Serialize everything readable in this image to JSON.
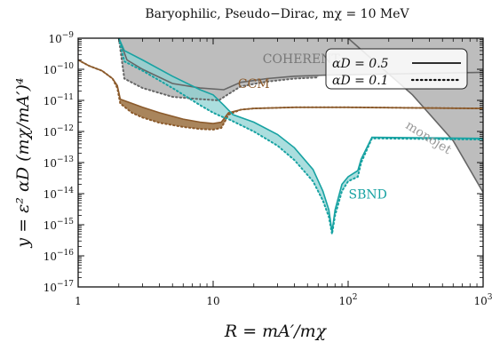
{
  "chart_data": {
    "type": "line",
    "title": "Baryophilic, Pseudo−Dirac, mχ = 10 MeV",
    "xlabel": "R = mA′/mχ",
    "ylabel": "y = ε² αD (mχ/mA′)⁴",
    "xscale": "log",
    "yscale": "log",
    "xlim": [
      1,
      1000
    ],
    "ylim": [
      1e-17,
      1e-09
    ],
    "x_ticks": [
      {
        "base": "1",
        "exp": "",
        "value": 1
      },
      {
        "base": "10",
        "exp": "",
        "value": 10
      },
      {
        "base": "10",
        "exp": "2",
        "value": 100
      },
      {
        "base": "10",
        "exp": "3",
        "value": 1000
      }
    ],
    "y_ticks": [
      {
        "base": "10",
        "exp": "−17",
        "value": 1e-17
      },
      {
        "base": "10",
        "exp": "−16",
        "value": 1e-16
      },
      {
        "base": "10",
        "exp": "−15",
        "value": 1e-15
      },
      {
        "base": "10",
        "exp": "−14",
        "value": 1e-14
      },
      {
        "base": "10",
        "exp": "−13",
        "value": 1e-13
      },
      {
        "base": "10",
        "exp": "−12",
        "value": 1e-12
      },
      {
        "base": "10",
        "exp": "−11",
        "value": 1e-11
      },
      {
        "base": "10",
        "exp": "−10",
        "value": 1e-10
      },
      {
        "base": "10",
        "exp": "−9",
        "value": 1e-09
      }
    ],
    "legend": {
      "placement": "top-right",
      "entries": [
        {
          "label": "αD = 0.5",
          "style": "solid"
        },
        {
          "label": "αD = 0.1",
          "style": "dotted"
        }
      ]
    },
    "annotations": [
      {
        "text": "COHERENT",
        "color": "#777777",
        "x": 45,
        "y": 1.6e-10
      },
      {
        "text": "CCM",
        "color": "#8B5A2B",
        "x": 20,
        "y": 2.5e-11
      },
      {
        "text": "SBND",
        "color": "#17A2A2",
        "x": 140,
        "y": 7e-15
      },
      {
        "text": "monojet",
        "color": "#999999",
        "x": 380,
        "y": 5e-13,
        "rotate": 32
      }
    ],
    "series": [
      {
        "name": "COHERENT",
        "color": "#666666",
        "fill": "#bdbdbd",
        "solid": [
          [
            2,
            1e-09
          ],
          [
            2.3,
            2e-10
          ],
          [
            3,
            1e-10
          ],
          [
            5,
            3.5e-11
          ],
          [
            8,
            2.5e-11
          ],
          [
            12,
            2.2e-11
          ],
          [
            16,
            3.8e-11
          ],
          [
            25,
            5e-11
          ],
          [
            40,
            6e-11
          ],
          [
            70,
            6.5e-11
          ],
          [
            1000,
            8e-11
          ]
        ],
        "dotted": [
          [
            2,
            1e-09
          ],
          [
            2.2,
            5e-11
          ],
          [
            3,
            2.5e-11
          ],
          [
            5,
            1.3e-11
          ],
          [
            8,
            1.1e-11
          ],
          [
            11,
            1e-11
          ],
          [
            13,
            1.6e-11
          ],
          [
            16,
            2.8e-11
          ],
          [
            25,
            4e-11
          ],
          [
            40,
            5e-11
          ],
          [
            60,
            5.5e-11
          ]
        ]
      },
      {
        "name": "monojet",
        "color": "#666666",
        "fill": "#bdbdbd",
        "solid": [
          [
            100,
            1e-09
          ],
          [
            300,
            1.5e-11
          ],
          [
            600,
            5e-13
          ],
          [
            1000,
            1.1e-14
          ]
        ]
      },
      {
        "name": "CCM",
        "color": "#8B5A2B",
        "fill": "#a0784a",
        "solid": [
          [
            1,
            2e-10
          ],
          [
            1.2,
            1.3e-10
          ],
          [
            1.5,
            9e-11
          ],
          [
            1.8,
            5e-11
          ],
          [
            1.95,
            3e-11
          ],
          [
            2.05,
            1.1e-11
          ],
          [
            2.5,
            8e-12
          ],
          [
            3,
            6e-12
          ],
          [
            4,
            4e-12
          ],
          [
            6,
            2.5e-12
          ],
          [
            8,
            2e-12
          ],
          [
            10,
            1.8e-12
          ],
          [
            11.5,
            2e-12
          ],
          [
            13,
            4e-12
          ],
          [
            16,
            5e-12
          ],
          [
            20,
            5.5e-12
          ],
          [
            40,
            6e-12
          ],
          [
            100,
            6e-12
          ],
          [
            1000,
            5.5e-12
          ]
        ],
        "dotted": [
          [
            1,
            2e-10
          ],
          [
            1.2,
            1.3e-10
          ],
          [
            1.5,
            9e-11
          ],
          [
            1.8,
            5e-11
          ],
          [
            1.95,
            2.5e-11
          ],
          [
            2.05,
            8e-12
          ],
          [
            2.5,
            4e-12
          ],
          [
            3,
            2.8e-12
          ],
          [
            4,
            1.9e-12
          ],
          [
            6,
            1.4e-12
          ],
          [
            8,
            1.2e-12
          ],
          [
            10,
            1.15e-12
          ],
          [
            11.5,
            1.3e-12
          ],
          [
            12.5,
            2.5e-12
          ],
          [
            13,
            3.5e-12
          ],
          [
            16,
            5e-12
          ],
          [
            20,
            5.5e-12
          ],
          [
            40,
            6e-12
          ],
          [
            100,
            6e-12
          ],
          [
            1000,
            5.5e-12
          ]
        ]
      },
      {
        "name": "SBND",
        "color": "#17A2A2",
        "fill": "#8fd3d3",
        "solid": [
          [
            2,
            1e-09
          ],
          [
            2.2,
            4e-10
          ],
          [
            3,
            2e-10
          ],
          [
            5,
            6e-11
          ],
          [
            8,
            2.2e-11
          ],
          [
            10,
            1.5e-11
          ],
          [
            12,
            7e-12
          ],
          [
            14,
            3.5e-12
          ],
          [
            20,
            2e-12
          ],
          [
            30,
            8e-13
          ],
          [
            40,
            3e-13
          ],
          [
            55,
            6e-14
          ],
          [
            65,
            1.2e-14
          ],
          [
            72,
            3e-15
          ],
          [
            76,
            6e-16
          ],
          [
            80,
            3e-15
          ],
          [
            90,
            2e-14
          ],
          [
            100,
            3.5e-14
          ],
          [
            118,
            5.5e-14
          ],
          [
            125,
            1.3e-13
          ],
          [
            150,
            6.5e-13
          ],
          [
            1000,
            6e-13
          ]
        ],
        "dotted": [
          [
            2,
            1e-09
          ],
          [
            2.2,
            1.8e-10
          ],
          [
            3,
            9e-11
          ],
          [
            5,
            2.5e-11
          ],
          [
            8,
            7e-12
          ],
          [
            10,
            4e-12
          ],
          [
            12,
            2.8e-12
          ],
          [
            13,
            2.5e-12
          ],
          [
            20,
            1e-12
          ],
          [
            30,
            3.5e-13
          ],
          [
            40,
            1.2e-13
          ],
          [
            55,
            2.5e-14
          ],
          [
            65,
            6e-15
          ],
          [
            72,
            1.8e-15
          ],
          [
            76,
            5e-16
          ],
          [
            80,
            2e-15
          ],
          [
            90,
            1.2e-14
          ],
          [
            100,
            2.5e-14
          ],
          [
            118,
            3.5e-14
          ],
          [
            125,
            1e-13
          ],
          [
            150,
            6e-13
          ],
          [
            1000,
            5.5e-13
          ]
        ]
      }
    ]
  }
}
